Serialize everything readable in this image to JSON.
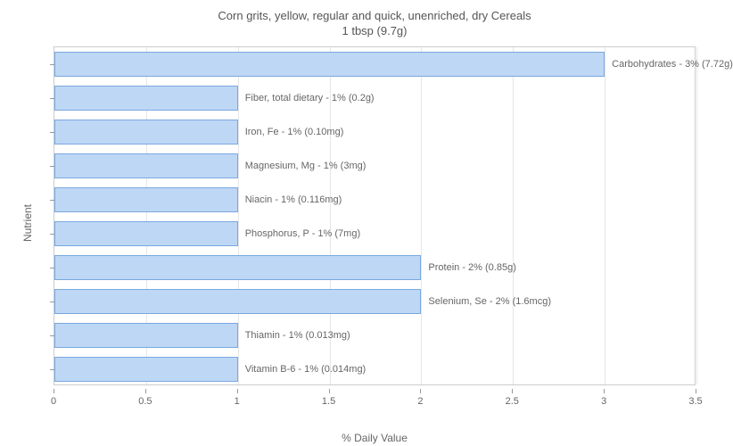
{
  "chart": {
    "type": "bar-horizontal",
    "title_line1": "Corn grits, yellow, regular and quick, unenriched, dry Cereals",
    "title_line2": "1 tbsp (9.7g)",
    "title_fontsize": 13,
    "title_color": "#555555",
    "x_axis_title": "% Daily Value",
    "y_axis_title": "Nutrient",
    "axis_title_fontsize": 12,
    "axis_title_color": "#666666",
    "xlim_min": 0,
    "xlim_max": 3.5,
    "xtick_step": 0.5,
    "xticks": [
      {
        "value": 0,
        "label": "0"
      },
      {
        "value": 0.5,
        "label": "0.5"
      },
      {
        "value": 1,
        "label": "1"
      },
      {
        "value": 1.5,
        "label": "1.5"
      },
      {
        "value": 2,
        "label": "2"
      },
      {
        "value": 2.5,
        "label": "2.5"
      },
      {
        "value": 3,
        "label": "3"
      },
      {
        "value": 3.5,
        "label": "3.5"
      }
    ],
    "bar_fill_color": "#bdd7f5",
    "bar_border_color": "#7aa8e0",
    "bar_label_fontsize": 11,
    "bar_label_color": "#666666",
    "grid_color": "#e6e6e6",
    "background_color": "#ffffff",
    "plot_border_color": "#cccccc",
    "bars": [
      {
        "value": 3,
        "label": "Carbohydrates - 3% (7.72g)"
      },
      {
        "value": 1,
        "label": "Fiber, total dietary - 1% (0.2g)"
      },
      {
        "value": 1,
        "label": "Iron, Fe - 1% (0.10mg)"
      },
      {
        "value": 1,
        "label": "Magnesium, Mg - 1% (3mg)"
      },
      {
        "value": 1,
        "label": "Niacin - 1% (0.116mg)"
      },
      {
        "value": 1,
        "label": "Phosphorus, P - 1% (7mg)"
      },
      {
        "value": 2,
        "label": "Protein - 2% (0.85g)"
      },
      {
        "value": 2,
        "label": "Selenium, Se - 2% (1.6mcg)"
      },
      {
        "value": 1,
        "label": "Thiamin - 1% (0.013mg)"
      },
      {
        "value": 1,
        "label": "Vitamin B-6 - 1% (0.014mg)"
      }
    ]
  }
}
